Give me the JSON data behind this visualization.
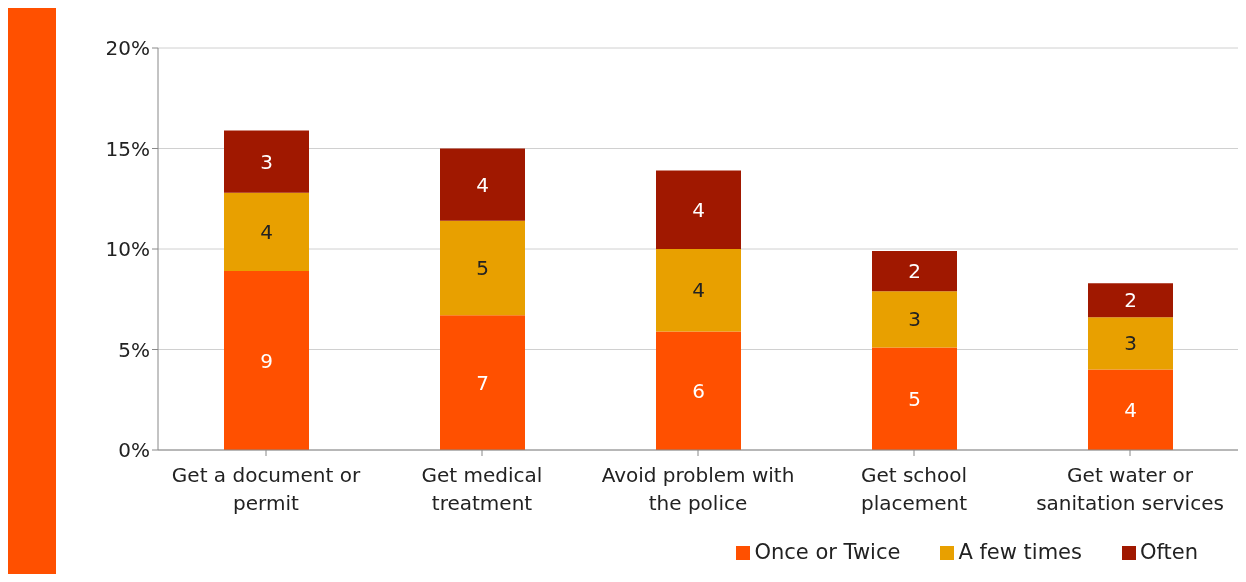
{
  "chart_data": {
    "type": "bar",
    "stacked": true,
    "categories": [
      "Get a document or permit",
      "Get medical treatment",
      "Avoid problem with the police",
      "Get school placement",
      "Get water or sanitation services"
    ],
    "series": [
      {
        "name": "Once or Twice",
        "color": "#ff5000",
        "values": [
          8.9,
          6.7,
          5.9,
          5.1,
          4.0
        ],
        "value_labels": [
          "9",
          "7",
          "6",
          "5",
          "4"
        ]
      },
      {
        "name": "A few times",
        "color": "#e8a000",
        "values": [
          3.9,
          4.7,
          4.1,
          2.8,
          2.6
        ],
        "value_labels": [
          "4",
          "5",
          "4",
          "3",
          "3"
        ]
      },
      {
        "name": "Often",
        "color": "#a01800",
        "values": [
          3.1,
          3.6,
          3.9,
          2.0,
          1.7
        ],
        "value_labels": [
          "3",
          "4",
          "4",
          "2",
          "2"
        ]
      }
    ],
    "ylim": [
      0,
      20
    ],
    "yticks": [
      {
        "value": 0,
        "label": "0%"
      },
      {
        "value": 5,
        "label": "5%"
      },
      {
        "value": 10,
        "label": "10%"
      },
      {
        "value": 15,
        "label": "15%"
      },
      {
        "value": 20,
        "label": "20%"
      }
    ],
    "grid": "y",
    "legend": "bottom right"
  }
}
